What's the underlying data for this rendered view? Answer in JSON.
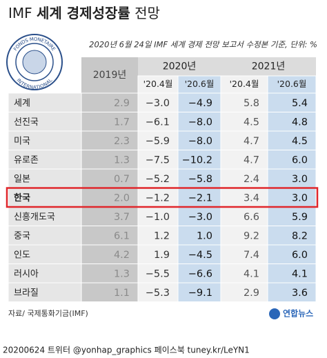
{
  "header": {
    "title_parts": [
      "IMF ",
      "세계 경제성장률",
      " 전망"
    ],
    "subtitle": "2020년 6월 24일 IMF 세계 경제 전망 보고서 수정본 기준, 단위: %",
    "seal_top": "FONDS MONETAIRE",
    "seal_bottom": "INTERNATIONAL"
  },
  "table": {
    "year_headers": [
      "2019년",
      "2020년",
      "2021년"
    ],
    "sub_headers": [
      "'20.4월",
      "'20.6월",
      "'20.4월",
      "'20.6월"
    ],
    "highlight_row": 5,
    "rows": [
      [
        "세계",
        "2.9",
        "−3.0",
        "−4.9",
        "5.8",
        "5.4"
      ],
      [
        "선진국",
        "1.7",
        "−6.1",
        "−8.0",
        "4.5",
        "4.8"
      ],
      [
        "미국",
        "2.3",
        "−5.9",
        "−8.0",
        "4.7",
        "4.5"
      ],
      [
        "유로존",
        "1.3",
        "−7.5",
        "−10.2",
        "4.7",
        "6.0"
      ],
      [
        "일본",
        "0.7",
        "−5.2",
        "−5.8",
        "2.4",
        "3.0"
      ],
      [
        "한국",
        "2.0",
        "−1.2",
        "−2.1",
        "3.4",
        "3.0"
      ],
      [
        "신흥개도국",
        "3.7",
        "−1.0",
        "−3.0",
        "6.6",
        "5.9"
      ],
      [
        "중국",
        "6.1",
        "1.2",
        "1.0",
        "9.2",
        "8.2"
      ],
      [
        "인도",
        "4.2",
        "1.9",
        "−4.5",
        "7.4",
        "6.0"
      ],
      [
        "러시아",
        "1.3",
        "−5.5",
        "−6.6",
        "4.1",
        "4.1"
      ],
      [
        "브라질",
        "1.1",
        "−5.3",
        "−9.1",
        "2.9",
        "3.6"
      ]
    ]
  },
  "footer": {
    "source": "자료/ 국제통화기금(IMF)",
    "logo": "연합뉴스",
    "credit": "20200624  트위터 @yonhap_graphics  페이스북 tuney.kr/LeYN1"
  }
}
